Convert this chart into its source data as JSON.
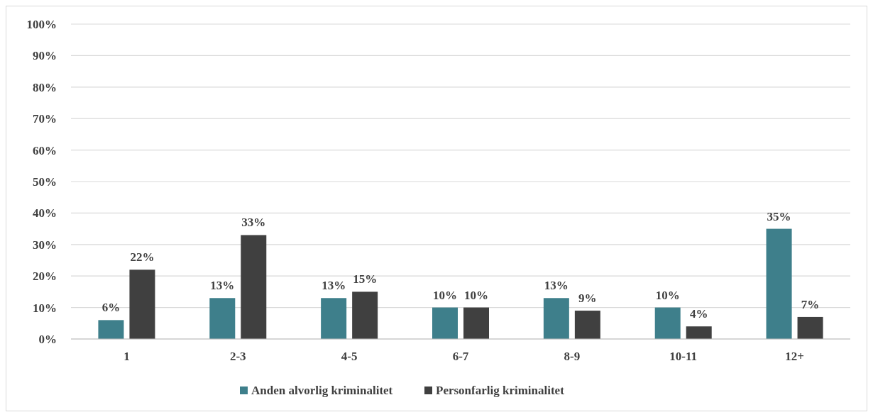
{
  "chart_data": {
    "type": "bar",
    "categories": [
      "1",
      "2-3",
      "4-5",
      "6-7",
      "8-9",
      "10-11",
      "12+"
    ],
    "series": [
      {
        "name": "Anden alvorlig kriminalitet",
        "color": "#3e7f8b",
        "values": [
          6,
          13,
          13,
          10,
          13,
          10,
          35
        ],
        "value_labels": [
          "6%",
          "13%",
          "13%",
          "10%",
          "13%",
          "10%",
          "35%"
        ]
      },
      {
        "name": "Personfarlig kriminalitet",
        "color": "#404040",
        "values": [
          22,
          33,
          15,
          10,
          9,
          4,
          7
        ],
        "value_labels": [
          "22%",
          "33%",
          "15%",
          "10%",
          "9%",
          "4%",
          "7%"
        ]
      }
    ],
    "ylim": [
      0,
      100
    ],
    "yticks": [
      {
        "value": 0,
        "label": "0%"
      },
      {
        "value": 10,
        "label": "10%"
      },
      {
        "value": 20,
        "label": "20%"
      },
      {
        "value": 30,
        "label": "30%"
      },
      {
        "value": 40,
        "label": "40%"
      },
      {
        "value": 50,
        "label": "50%"
      },
      {
        "value": 60,
        "label": "60%"
      },
      {
        "value": 70,
        "label": "70%"
      },
      {
        "value": 80,
        "label": "80%"
      },
      {
        "value": 90,
        "label": "90%"
      },
      {
        "value": 100,
        "label": "100%"
      }
    ],
    "grid": "y",
    "legend": "bottom"
  }
}
